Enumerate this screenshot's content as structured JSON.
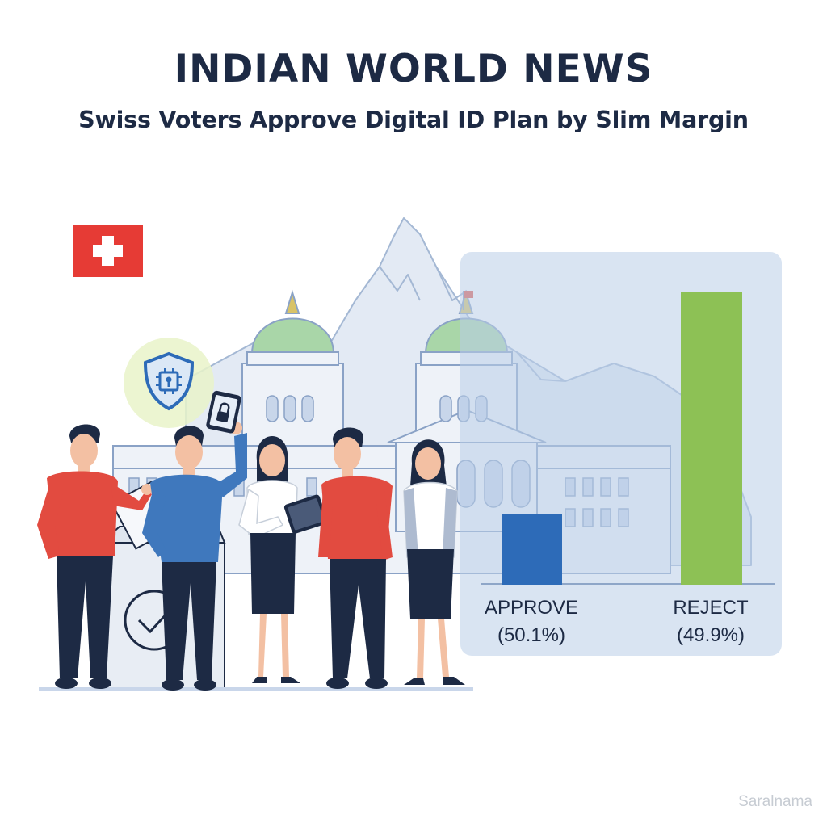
{
  "header": {
    "title": "INDIAN WORLD NEWS",
    "subtitle": "Swiss Voters Approve Digital ID Plan by Slim Margin"
  },
  "illustration": {
    "icons": [
      "swiss-flag-icon",
      "shield-chip-icon",
      "ballot-check-icon",
      "padlock-icon"
    ],
    "colors": {
      "flag_red": "#e63b35",
      "approve_blue": "#2d6bb8",
      "reject_green": "#8dc155",
      "dome_green": "#9fd19c",
      "panel": "#c3d4ea",
      "shirt_red": "#e24b40",
      "shirt_blue": "#3f78bd",
      "navy": "#1d2a44"
    }
  },
  "chart_data": {
    "type": "bar",
    "categories": [
      "APPROVE",
      "REJECT"
    ],
    "values": [
      50.1,
      49.9
    ],
    "labels": [
      {
        "name": "APPROVE",
        "pct": "(50.1%)"
      },
      {
        "name": "REJECT",
        "pct": "(49.9%)"
      }
    ],
    "bar_colors": [
      "#2d6bb8",
      "#8dc155"
    ],
    "title": "",
    "xlabel": "",
    "ylabel": ""
  },
  "watermark": "Saralnama"
}
